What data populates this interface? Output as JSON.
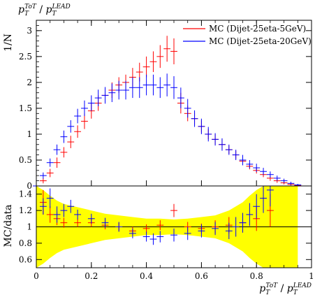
{
  "chart_data": [
    {
      "type": "line",
      "panel": "main",
      "title": "p_T^{ToT} / p_T^{LEAD}",
      "title_parts": {
        "p": "p",
        "sub": "T",
        "sup_a": "ToT",
        "sep": " / ",
        "sup_b": "LEAD"
      },
      "ylabel": "1/N",
      "xlim": [
        0,
        1
      ],
      "ylim": [
        0,
        3.2
      ],
      "grid": false,
      "legend_position": "top-right",
      "y_ticks": [
        "0",
        "0.5",
        "1",
        "1.5",
        "2",
        "2.5",
        "3"
      ],
      "y_tick_values": [
        0,
        0.5,
        1,
        1.5,
        2,
        2.5,
        3
      ],
      "series": [
        {
          "name": "MC (Dijet-25eta-5GeV)",
          "color": "#ff0000",
          "x": [
            0.0,
            0.025,
            0.05,
            0.075,
            0.1,
            0.125,
            0.15,
            0.175,
            0.2,
            0.225,
            0.25,
            0.275,
            0.3,
            0.325,
            0.35,
            0.375,
            0.4,
            0.425,
            0.45,
            0.475,
            0.5,
            0.525,
            0.55,
            0.575,
            0.6,
            0.625,
            0.65,
            0.675,
            0.7,
            0.725,
            0.75,
            0.775,
            0.8,
            0.825,
            0.85,
            0.875,
            0.9,
            0.925,
            0.95
          ],
          "y": [
            0.0,
            0.1,
            0.25,
            0.45,
            0.65,
            0.85,
            1.05,
            1.25,
            1.45,
            1.6,
            1.75,
            1.85,
            1.95,
            2.0,
            2.1,
            2.2,
            2.3,
            2.4,
            2.5,
            2.65,
            2.6,
            1.6,
            1.4,
            1.3,
            1.15,
            1.0,
            0.9,
            0.8,
            0.7,
            0.6,
            0.48,
            0.38,
            0.3,
            0.22,
            0.15,
            0.1,
            0.06,
            0.03,
            0.01
          ],
          "err": [
            0.0,
            0.05,
            0.08,
            0.1,
            0.1,
            0.12,
            0.12,
            0.15,
            0.15,
            0.15,
            0.15,
            0.15,
            0.15,
            0.15,
            0.18,
            0.18,
            0.2,
            0.2,
            0.22,
            0.25,
            0.25,
            0.2,
            0.15,
            0.12,
            0.12,
            0.1,
            0.1,
            0.1,
            0.08,
            0.08,
            0.08,
            0.06,
            0.06,
            0.05,
            0.05,
            0.04,
            0.03,
            0.02,
            0.01
          ]
        },
        {
          "name": "MC (Dijet-25eta-20GeV)",
          "color": "#0000ff",
          "x": [
            0.0,
            0.025,
            0.05,
            0.075,
            0.1,
            0.125,
            0.15,
            0.175,
            0.2,
            0.225,
            0.25,
            0.275,
            0.3,
            0.325,
            0.35,
            0.375,
            0.4,
            0.425,
            0.45,
            0.475,
            0.5,
            0.525,
            0.55,
            0.575,
            0.6,
            0.625,
            0.65,
            0.675,
            0.7,
            0.725,
            0.75,
            0.775,
            0.8,
            0.825,
            0.85,
            0.875,
            0.9,
            0.925,
            0.95
          ],
          "y": [
            0.0,
            0.2,
            0.45,
            0.7,
            0.95,
            1.15,
            1.35,
            1.5,
            1.6,
            1.7,
            1.75,
            1.8,
            1.85,
            1.85,
            1.9,
            1.9,
            1.95,
            1.95,
            1.9,
            1.95,
            1.9,
            1.7,
            1.5,
            1.3,
            1.15,
            1.0,
            0.9,
            0.8,
            0.7,
            0.6,
            0.5,
            0.42,
            0.35,
            0.28,
            0.22,
            0.15,
            0.1,
            0.05,
            0.02
          ],
          "err": [
            0.0,
            0.06,
            0.08,
            0.1,
            0.12,
            0.12,
            0.14,
            0.15,
            0.15,
            0.16,
            0.16,
            0.18,
            0.18,
            0.18,
            0.2,
            0.2,
            0.2,
            0.2,
            0.2,
            0.22,
            0.22,
            0.2,
            0.18,
            0.16,
            0.15,
            0.14,
            0.12,
            0.12,
            0.1,
            0.1,
            0.1,
            0.08,
            0.08,
            0.07,
            0.06,
            0.05,
            0.04,
            0.03,
            0.02
          ]
        }
      ]
    },
    {
      "type": "line",
      "panel": "ratio",
      "ylabel": "MC/data",
      "xlabel": "p_T^{ToT} / p_T^{LEAD}",
      "xlabel_parts": {
        "p": "p",
        "sub": "T",
        "sup_a": "ToT",
        "sep": " / ",
        "sup_b": "LEAD"
      },
      "xlim": [
        0,
        1
      ],
      "ylim": [
        0.5,
        1.5
      ],
      "grid": false,
      "reference_line": 1,
      "x_ticks": [
        "0",
        "0.2",
        "0.4",
        "0.6",
        "0.8",
        "1"
      ],
      "x_tick_values": [
        0,
        0.2,
        0.4,
        0.6,
        0.8,
        1
      ],
      "y_ticks": [
        "0.6",
        "0.8",
        "1",
        "1.2",
        "1.4"
      ],
      "y_tick_values": [
        0.6,
        0.8,
        1.0,
        1.2,
        1.4
      ],
      "band": {
        "color": "#ffff00",
        "x": [
          0.0,
          0.025,
          0.05,
          0.075,
          0.1,
          0.15,
          0.2,
          0.25,
          0.3,
          0.35,
          0.4,
          0.45,
          0.5,
          0.55,
          0.6,
          0.65,
          0.7,
          0.725,
          0.75,
          0.775,
          0.8,
          0.825,
          0.85,
          0.875,
          0.9,
          0.925,
          0.95
        ],
        "lower": [
          0.5,
          0.55,
          0.62,
          0.68,
          0.72,
          0.76,
          0.8,
          0.84,
          0.86,
          0.88,
          0.9,
          0.9,
          0.91,
          0.9,
          0.88,
          0.86,
          0.8,
          0.75,
          0.7,
          0.62,
          0.55,
          0.5,
          0.5,
          0.5,
          0.5,
          0.5,
          0.5
        ],
        "upper": [
          1.5,
          1.45,
          1.38,
          1.32,
          1.28,
          1.24,
          1.2,
          1.16,
          1.14,
          1.12,
          1.1,
          1.1,
          1.09,
          1.1,
          1.12,
          1.14,
          1.2,
          1.25,
          1.3,
          1.38,
          1.45,
          1.5,
          1.5,
          1.5,
          1.5,
          1.5,
          1.5
        ]
      },
      "series": [
        {
          "name": "MC (Dijet-25eta-5GeV) / data",
          "color": "#ff0000",
          "x": [
            0.025,
            0.05,
            0.075,
            0.1,
            0.15,
            0.2,
            0.25,
            0.3,
            0.35,
            0.4,
            0.45,
            0.5,
            0.55,
            0.6,
            0.65,
            0.7,
            0.75,
            0.8,
            0.85
          ],
          "y": [
            1.3,
            1.15,
            1.1,
            1.05,
            1.05,
            1.05,
            1.02,
            1.0,
            0.95,
            0.98,
            1.02,
            1.2,
            1.0,
            0.98,
            1.0,
            1.02,
            1.05,
            1.1,
            1.2
          ],
          "err": [
            0.15,
            0.1,
            0.08,
            0.06,
            0.05,
            0.05,
            0.05,
            0.05,
            0.05,
            0.05,
            0.06,
            0.08,
            0.06,
            0.06,
            0.08,
            0.1,
            0.12,
            0.15,
            0.2
          ]
        },
        {
          "name": "MC (Dijet-25eta-20GeV) / data",
          "color": "#0000ff",
          "x": [
            0.025,
            0.05,
            0.075,
            0.1,
            0.125,
            0.15,
            0.2,
            0.25,
            0.3,
            0.35,
            0.4,
            0.425,
            0.45,
            0.5,
            0.55,
            0.6,
            0.65,
            0.7,
            0.725,
            0.75,
            0.775,
            0.8,
            0.825,
            0.85
          ],
          "y": [
            1.25,
            1.35,
            1.15,
            1.2,
            1.25,
            1.15,
            1.1,
            1.05,
            1.0,
            0.92,
            0.88,
            0.85,
            0.88,
            0.9,
            0.92,
            0.95,
            0.98,
            0.95,
            1.0,
            1.05,
            1.15,
            1.25,
            1.35,
            1.45
          ],
          "err": [
            0.1,
            0.12,
            0.1,
            0.08,
            0.08,
            0.06,
            0.06,
            0.06,
            0.06,
            0.06,
            0.06,
            0.07,
            0.07,
            0.08,
            0.08,
            0.08,
            0.08,
            0.1,
            0.12,
            0.12,
            0.14,
            0.15,
            0.18,
            0.2
          ]
        }
      ]
    }
  ]
}
